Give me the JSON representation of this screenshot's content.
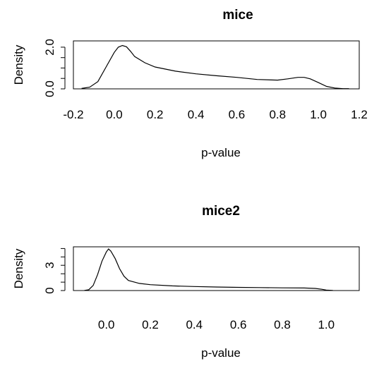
{
  "chart_data": [
    {
      "type": "line",
      "title": "mice",
      "xlabel": "p-value",
      "ylabel": "Density",
      "xlim": [
        -0.2,
        1.2
      ],
      "ylim": [
        0.0,
        2.3
      ],
      "x_ticks": [
        -0.2,
        0.0,
        0.2,
        0.4,
        0.6,
        0.8,
        1.0,
        1.2
      ],
      "x_tick_labels": [
        "-0.2",
        "0.0",
        "0.2",
        "0.4",
        "0.6",
        "0.8",
        "1.0",
        "1.2"
      ],
      "y_ticks": [
        0.0,
        0.5,
        1.0,
        1.5,
        2.0
      ],
      "y_tick_labels": [
        "0.0",
        "",
        "",
        "",
        "2.0"
      ],
      "grid": false,
      "series": [
        {
          "x": [
            -0.16,
            -0.12,
            -0.08,
            -0.04,
            0.0,
            0.02,
            0.04,
            0.06,
            0.08,
            0.1,
            0.15,
            0.2,
            0.3,
            0.4,
            0.5,
            0.6,
            0.7,
            0.8,
            0.85,
            0.9,
            0.93,
            0.96,
            1.0,
            1.04,
            1.08,
            1.12,
            1.15
          ],
          "values": [
            0.02,
            0.08,
            0.35,
            1.05,
            1.75,
            2.0,
            2.08,
            2.02,
            1.8,
            1.55,
            1.25,
            1.05,
            0.85,
            0.72,
            0.63,
            0.55,
            0.45,
            0.42,
            0.48,
            0.55,
            0.55,
            0.48,
            0.3,
            0.12,
            0.04,
            0.01,
            0.01
          ]
        }
      ]
    },
    {
      "type": "line",
      "title": "mice2",
      "xlabel": "p-value",
      "ylabel": "Density",
      "xlim": [
        -0.15,
        1.15
      ],
      "ylim": [
        0.0,
        5.2
      ],
      "x_ticks": [
        0.0,
        0.2,
        0.4,
        0.6,
        0.8,
        1.0
      ],
      "x_tick_labels": [
        "0.0",
        "0.2",
        "0.4",
        "0.6",
        "0.8",
        "1.0"
      ],
      "y_ticks": [
        0,
        1,
        2,
        3,
        4,
        5
      ],
      "y_tick_labels": [
        "0",
        "",
        "",
        "3",
        "",
        ""
      ],
      "grid": false,
      "series": [
        {
          "x": [
            -0.1,
            -0.08,
            -0.06,
            -0.04,
            -0.02,
            0.0,
            0.01,
            0.02,
            0.04,
            0.06,
            0.08,
            0.1,
            0.15,
            0.2,
            0.3,
            0.4,
            0.5,
            0.6,
            0.7,
            0.8,
            0.9,
            0.95,
            0.98,
            1.0,
            1.03
          ],
          "values": [
            0.02,
            0.1,
            0.6,
            1.9,
            3.5,
            4.6,
            4.95,
            4.7,
            3.8,
            2.6,
            1.7,
            1.2,
            0.85,
            0.7,
            0.55,
            0.48,
            0.42,
            0.38,
            0.35,
            0.32,
            0.3,
            0.25,
            0.15,
            0.06,
            0.01
          ]
        }
      ]
    }
  ]
}
